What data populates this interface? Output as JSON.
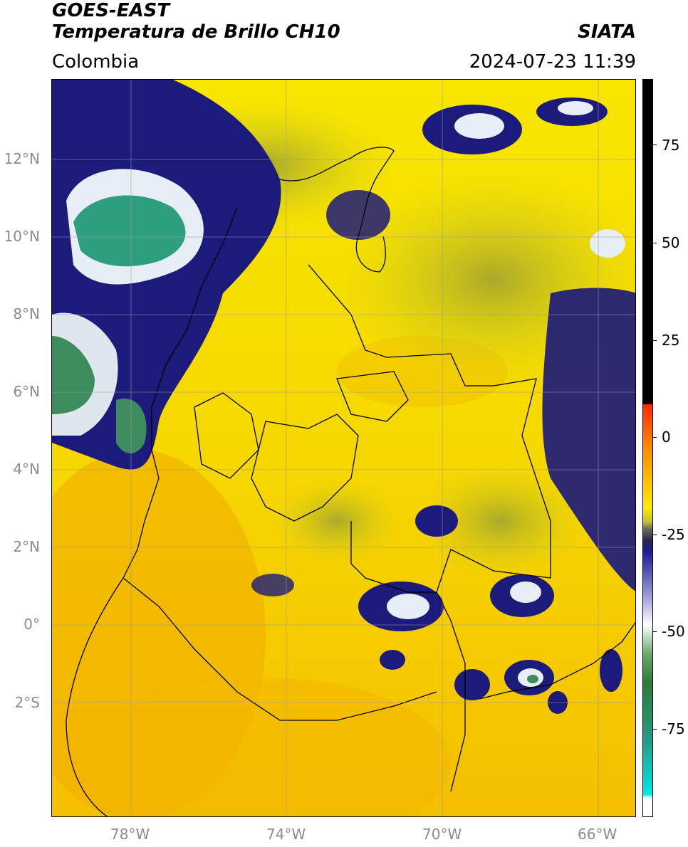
{
  "header": {
    "line1": "GOES-EAST",
    "line2": "Temperatura de Brillo CH10",
    "region": "Colombia",
    "agency": "SIATA",
    "datetime": "2024-07-23 11:39"
  },
  "map": {
    "lat_labels": [
      "12°N",
      "10°N",
      "8°N",
      "6°N",
      "4°N",
      "2°N",
      "0°",
      "2°S"
    ],
    "lon_labels": [
      "78°W",
      "74°W",
      "70°W",
      "66°W"
    ],
    "colors": {
      "background_warm": "#f7e300",
      "background_orange": "#f4b400",
      "cloud_olive": "#b5b423",
      "cloud_navy": "#1c1a7a",
      "cloud_white": "#ffffff",
      "cloud_green": "#3f8f6a",
      "border_line": "#000000",
      "grid_line": "#9a9a9a"
    }
  },
  "colorbar": {
    "labels": [
      "75",
      "50",
      "25",
      "0",
      "-25",
      "-50",
      "-75"
    ]
  }
}
